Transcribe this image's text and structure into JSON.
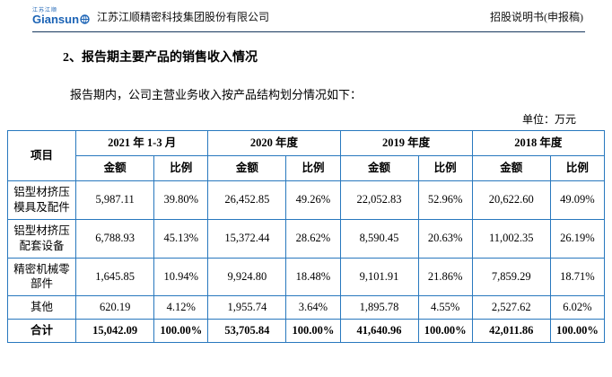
{
  "header": {
    "logo_small": "江苏江顺",
    "logo_en": "Giansun",
    "company": "江苏江顺精密科技集团股份有限公司",
    "doc_title": "招股说明书(申报稿)"
  },
  "section_title": "2、报告期主要产品的销售收入情况",
  "intro": "报告期内，公司主营业务收入按产品结构划分情况如下：",
  "unit_label": "单位：万元",
  "colors": {
    "table_border": "#2878be",
    "logo_blue": "#1b63b5",
    "divider": "#17375e"
  },
  "table": {
    "item_header": "项目",
    "amount_header": "金额",
    "ratio_header": "比例",
    "periods": [
      "2021 年 1-3 月",
      "2020 年度",
      "2019 年度",
      "2018 年度"
    ],
    "rows": [
      {
        "name": "铝型材挤压模具及配件",
        "total": false,
        "values": [
          "5,987.11",
          "39.80%",
          "26,452.85",
          "49.26%",
          "22,052.83",
          "52.96%",
          "20,622.60",
          "49.09%"
        ]
      },
      {
        "name": "铝型材挤压配套设备",
        "total": false,
        "values": [
          "6,788.93",
          "45.13%",
          "15,372.44",
          "28.62%",
          "8,590.45",
          "20.63%",
          "11,002.35",
          "26.19%"
        ]
      },
      {
        "name": "精密机械零部件",
        "total": false,
        "values": [
          "1,645.85",
          "10.94%",
          "9,924.80",
          "18.48%",
          "9,101.91",
          "21.86%",
          "7,859.29",
          "18.71%"
        ]
      },
      {
        "name": "其他",
        "total": false,
        "values": [
          "620.19",
          "4.12%",
          "1,955.74",
          "3.64%",
          "1,895.78",
          "4.55%",
          "2,527.62",
          "6.02%"
        ]
      },
      {
        "name": "合计",
        "total": true,
        "values": [
          "15,042.09",
          "100.00%",
          "53,705.84",
          "100.00%",
          "41,640.96",
          "100.00%",
          "42,011.86",
          "100.00%"
        ]
      }
    ]
  }
}
